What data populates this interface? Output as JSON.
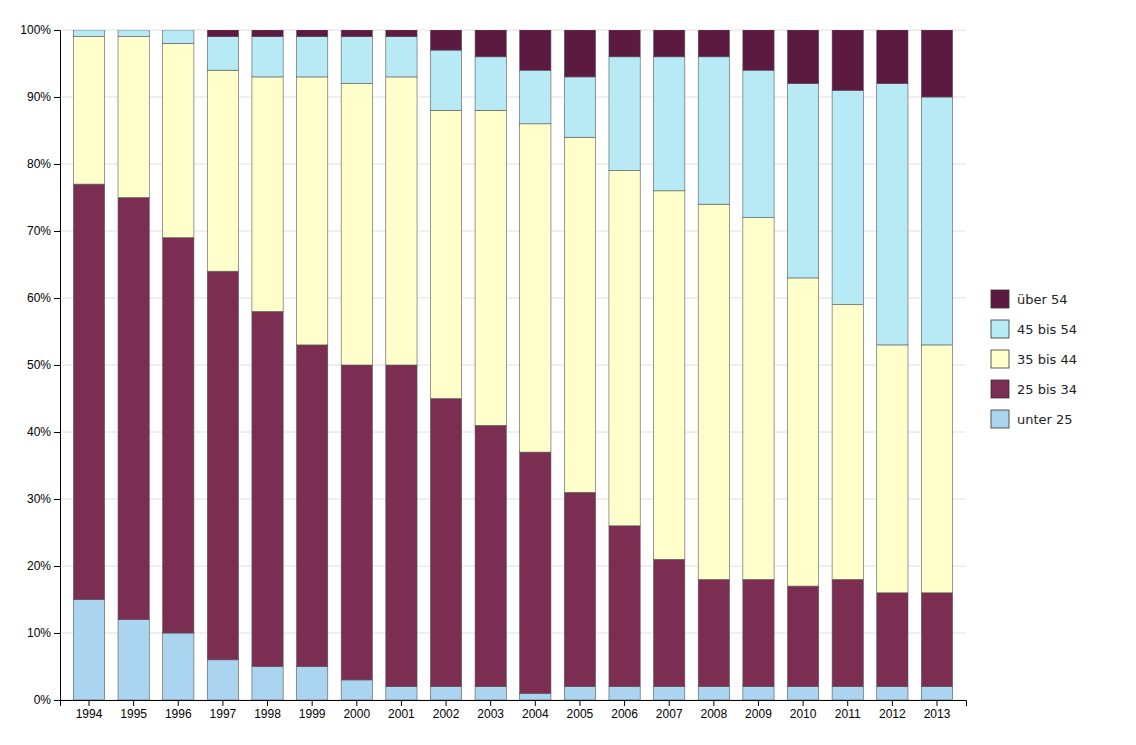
{
  "chart_data": {
    "type": "bar",
    "stacked": true,
    "categories": [
      "1994",
      "1995",
      "1996",
      "1997",
      "1998",
      "1999",
      "2000",
      "2001",
      "2002",
      "2003",
      "2004",
      "2005",
      "2006",
      "2007",
      "2008",
      "2009",
      "2010",
      "2011",
      "2012",
      "2013"
    ],
    "series": [
      {
        "name": "unter 25",
        "color": "#aad4f0",
        "values": [
          15,
          12,
          10,
          6,
          5,
          5,
          3,
          2,
          2,
          2,
          1,
          2,
          2,
          2,
          2,
          2,
          2,
          2,
          2,
          2
        ]
      },
      {
        "name": "25 bis 34",
        "color": "#7b2d52",
        "values": [
          62,
          63,
          59,
          58,
          53,
          48,
          47,
          48,
          43,
          39,
          36,
          29,
          24,
          19,
          16,
          16,
          15,
          16,
          14,
          14
        ]
      },
      {
        "name": "35 bis 44",
        "color": "#ffffcc",
        "values": [
          22,
          24,
          29,
          30,
          35,
          40,
          42,
          43,
          43,
          47,
          49,
          53,
          53,
          55,
          56,
          54,
          46,
          41,
          37,
          37
        ]
      },
      {
        "name": "45 bis 54",
        "color": "#b8eaf5",
        "values": [
          1,
          1,
          2,
          5,
          6,
          6,
          7,
          6,
          9,
          8,
          8,
          9,
          17,
          20,
          22,
          22,
          29,
          32,
          39,
          37
        ]
      },
      {
        "name": "über 54",
        "color": "#5c1a40",
        "values": [
          0,
          0,
          0,
          1,
          1,
          1,
          1,
          1,
          3,
          4,
          6,
          7,
          4,
          4,
          4,
          6,
          8,
          9,
          8,
          10
        ]
      }
    ],
    "ylim": [
      0,
      100
    ],
    "yticks": [
      {
        "value": 0,
        "label": "0%"
      },
      {
        "value": 10,
        "label": "10%"
      },
      {
        "value": 20,
        "label": "20%"
      },
      {
        "value": 30,
        "label": "30%"
      },
      {
        "value": 40,
        "label": "40%"
      },
      {
        "value": 50,
        "label": "50%"
      },
      {
        "value": 60,
        "label": "60%"
      },
      {
        "value": 70,
        "label": "70%"
      },
      {
        "value": 80,
        "label": "80%"
      },
      {
        "value": 90,
        "label": "90%"
      },
      {
        "value": 100,
        "label": "100%"
      }
    ],
    "grid": true,
    "legend": "right"
  }
}
